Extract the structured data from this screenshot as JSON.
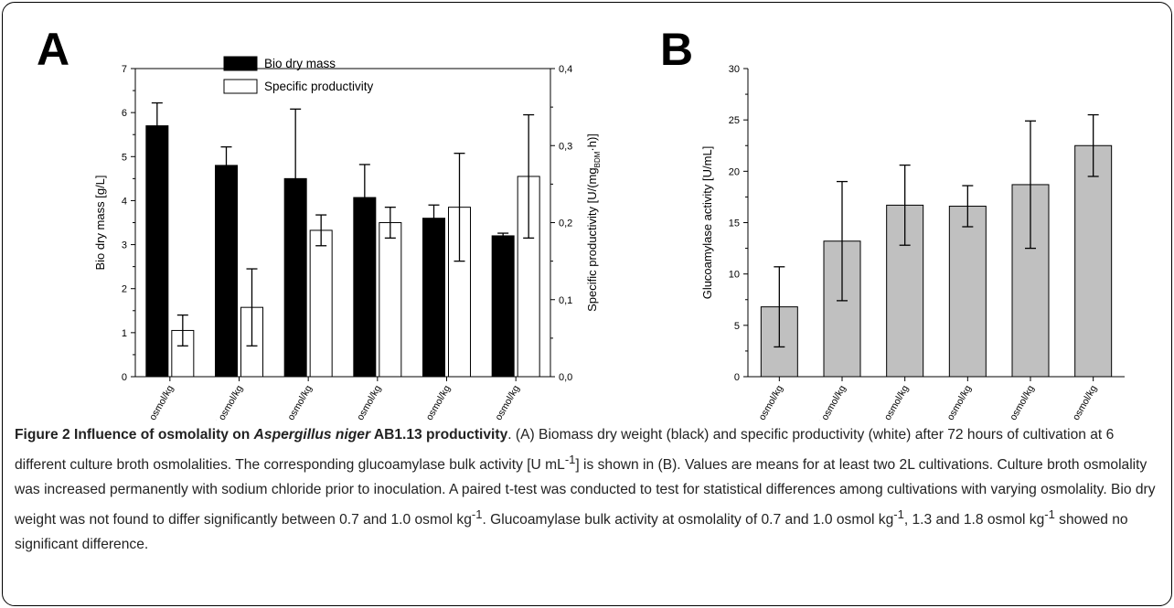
{
  "figure": {
    "panel_a_letter": "A",
    "panel_b_letter": "B",
    "caption": {
      "title_prefix": "Figure 2 Influence of osmolality on ",
      "title_species": "Aspergillus niger",
      "title_suffix": " AB1.13 productivity",
      "body_1": ". (A) Biomass dry weight (black) and specific productivity (white) after 72 hours of cultivation at 6 different culture broth osmolalities. The corresponding glucoamylase bulk activity [U mL",
      "body_1_sup": "-1",
      "body_2": "] is shown in (B). Values are means for at least two 2L cultivations. Culture broth osmolality was increased permanently with sodium chloride prior to inoculation. A paired t-test was conducted to test for statistical differences among cultivations with varying osmolality. Bio dry weight was not found to differ significantly between 0.7 and 1.0 osmol kg",
      "body_2_sup": "-1",
      "body_3": ". Glucoamylase bulk activity at osmolality of 0.7 and 1.0 osmol kg",
      "body_3_sup": "-1",
      "body_4": ", 1.3 and 1.8 osmol kg",
      "body_4_sup": "-1",
      "body_5": " showed no significant difference."
    }
  },
  "chart_data": [
    {
      "panel": "A",
      "type": "bar",
      "categories": [
        "0,2 osmol/kg",
        "0,7 osmol/kg",
        "1,0 osmol/kg",
        "1,3 osmol/kg",
        "1,8 osmol/kg",
        "2,4 osmol/kg"
      ],
      "ylabel": "Bio dry mass [g/L]",
      "ylim": [
        0,
        7
      ],
      "yticks": [
        "0",
        "1",
        "2",
        "3",
        "4",
        "5",
        "6",
        "7"
      ],
      "y2label_prefix": "Specific productivity [U/(mg",
      "y2label_sub": "BDM",
      "y2label_suffix": "·h)]",
      "y2lim": [
        0,
        0.4
      ],
      "y2ticks": [
        "0,0",
        "0,1",
        "0,2",
        "0,3",
        "0,4"
      ],
      "legend_position": "top-left",
      "grid": false,
      "series": [
        {
          "name": "Bio dry mass",
          "axis": "left",
          "color": "#000000",
          "values": [
            5.7,
            4.8,
            4.5,
            4.07,
            3.6,
            3.2
          ],
          "errors": [
            0.52,
            0.42,
            1.58,
            0.75,
            0.3,
            0.06
          ]
        },
        {
          "name": "Specific productivity",
          "axis": "right",
          "color": "#ffffff",
          "values": [
            0.06,
            0.09,
            0.19,
            0.2,
            0.22,
            0.26
          ],
          "errors": [
            0.02,
            0.05,
            0.02,
            0.02,
            0.07,
            0.08
          ]
        }
      ]
    },
    {
      "panel": "B",
      "type": "bar",
      "categories": [
        "0,2 osmol/kg",
        "0,7 osmol/kg",
        "1,0 osmol/kg",
        "1,3 osmol/kg",
        "1,8 osmol/kg",
        "2,4 osmol/kg"
      ],
      "ylabel": "Glucoamylase activity [U/mL]",
      "ylim": [
        0,
        30
      ],
      "yticks": [
        "0",
        "5",
        "10",
        "15",
        "20",
        "25",
        "30"
      ],
      "grid": false,
      "series": [
        {
          "color": "#c0c0c0",
          "values": [
            6.8,
            13.2,
            16.7,
            16.6,
            18.7,
            22.5
          ],
          "errors": [
            3.9,
            5.8,
            3.9,
            2.0,
            6.2,
            3.0
          ]
        }
      ]
    }
  ]
}
